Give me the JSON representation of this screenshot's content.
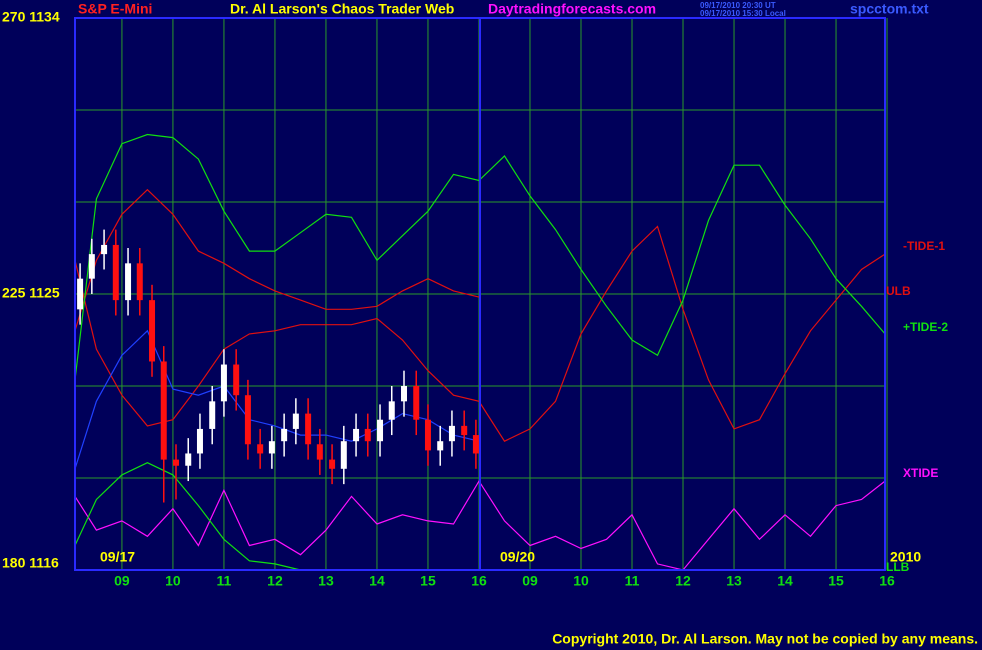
{
  "chart_data": {
    "type": "line",
    "symbol": "S&P E-Mini",
    "title": "Dr. Al Larson's Chaos Trader Web",
    "site": "Daytradingforecasts.com",
    "timestamps": [
      "09/17/2010 20:30 UT",
      "09/17/2010 15:30 Local"
    ],
    "file": "spcctom.txt",
    "copyright": "Copyright 2010, Dr. Al Larson. May not be copied by any means.",
    "annotations": [
      "09/17",
      "09/20",
      "2010"
    ],
    "xlim": [
      0.08,
      15.96
    ],
    "ylim": [
      1116,
      1134
    ],
    "xticks": [
      {
        "value": 1,
        "label": "09"
      },
      {
        "value": 2,
        "label": "10"
      },
      {
        "value": 3,
        "label": "11"
      },
      {
        "value": 4,
        "label": "12"
      },
      {
        "value": 5,
        "label": "13"
      },
      {
        "value": 6,
        "label": "14"
      },
      {
        "value": 7,
        "label": "15"
      },
      {
        "value": 8,
        "label": "16"
      },
      {
        "value": 9,
        "label": "09"
      },
      {
        "value": 10,
        "label": "10"
      },
      {
        "value": 11,
        "label": "11"
      },
      {
        "value": 12,
        "label": "12"
      },
      {
        "value": 13,
        "label": "13"
      },
      {
        "value": 14,
        "label": "14"
      },
      {
        "value": 15,
        "label": "15"
      },
      {
        "value": 16,
        "label": "16"
      }
    ],
    "yticks": [
      {
        "value": 1116,
        "label": "180 1116"
      },
      {
        "value": 1119,
        "label": null
      },
      {
        "value": 1122,
        "label": null
      },
      {
        "value": 1125,
        "label": "225 1125"
      },
      {
        "value": 1128,
        "label": null
      },
      {
        "value": 1131,
        "label": null
      },
      {
        "value": 1134,
        "label": "270 1134"
      }
    ],
    "grid": true,
    "x": [
      0.08,
      0.5,
      1,
      1.5,
      2,
      2.5,
      3,
      3.5,
      4,
      4.5,
      5,
      5.5,
      6,
      6.5,
      7,
      7.5,
      8,
      8.5,
      9,
      9.5,
      10,
      10.5,
      11,
      11.5,
      12,
      12.5,
      13,
      13.5,
      14,
      14.5,
      15,
      15.5,
      15.96
    ],
    "series": [
      {
        "name": "-TIDE-1",
        "color": "#e01010",
        "values": [
          1126.1,
          1123.2,
          1121.7,
          1120.7,
          1120.9,
          1122.0,
          1123.2,
          1123.7,
          1123.8,
          1124.0,
          1124.0,
          1124.0,
          1124.2,
          1123.5,
          1122.5,
          1121.7,
          1121.5,
          1120.2,
          1120.6,
          1121.5,
          1123.7,
          1125.1,
          1126.4,
          1127.2,
          1124.5,
          1122.2,
          1120.6,
          1120.9,
          1122.4,
          1123.8,
          1124.8,
          1125.8,
          1126.3
        ]
      },
      {
        "name": "ULB",
        "color": "#e01010",
        "values": [
          1123.8,
          1126.1,
          1127.6,
          1128.4,
          1127.6,
          1126.4,
          1126.0,
          1125.5,
          1125.1,
          1124.8,
          1124.5,
          1124.5,
          1124.6,
          1125.1,
          1125.5,
          1125.1,
          1124.9,
          null,
          null,
          null,
          null,
          null,
          null,
          null,
          null,
          null,
          null,
          null,
          null,
          null,
          null,
          null,
          null
        ]
      },
      {
        "name": "+TIDE-2",
        "color": "#10e010",
        "values": [
          1122.2,
          1128.1,
          1129.9,
          1130.2,
          1130.1,
          1129.4,
          1127.7,
          1126.4,
          1126.4,
          1127.0,
          1127.6,
          1127.5,
          1126.1,
          1126.9,
          1127.7,
          1128.9,
          1128.7,
          1129.5,
          1128.2,
          1127.1,
          1125.8,
          1124.6,
          1123.5,
          1123.0,
          1124.8,
          1127.4,
          1129.2,
          1129.2,
          1127.9,
          1126.8,
          1125.5,
          1124.6,
          1123.7
        ]
      },
      {
        "color": "#2040ff",
        "values": [
          1119.3,
          1121.5,
          1123.0,
          1123.8,
          1121.9,
          1121.7,
          1122.0,
          1120.9,
          1120.7,
          1120.4,
          1120.4,
          1120.2,
          1120.6,
          1121.1,
          1120.9,
          1120.4,
          1120.2,
          null,
          null,
          null,
          null,
          null,
          null,
          null,
          null,
          null,
          null,
          null,
          null,
          null,
          null,
          null,
          null
        ]
      },
      {
        "name": "XTIDE",
        "color": "#ff10ff",
        "values": [
          1118.4,
          1117.3,
          1117.6,
          1117.1,
          1118.0,
          1116.8,
          1118.6,
          1116.8,
          1117.0,
          1116.5,
          1117.3,
          1118.4,
          1117.5,
          1117.8,
          1117.6,
          1117.5,
          1118.9,
          1117.6,
          1116.8,
          1117.1,
          1116.7,
          1117.0,
          1117.8,
          1116.2,
          1116.0,
          1117.0,
          1118.0,
          1117.0,
          1117.8,
          1117.1,
          1118.1,
          1118.3,
          1118.9
        ]
      },
      {
        "name": "LLB",
        "color": "#10e010",
        "values": [
          1116.8,
          1118.3,
          1119.1,
          1119.5,
          1119.1,
          1118.1,
          1117.0,
          1116.3,
          1116.2,
          1116.0,
          null,
          null,
          null,
          null,
          null,
          null,
          null,
          null,
          null,
          null,
          null,
          null,
          null,
          null,
          null,
          null,
          null,
          null,
          null,
          null,
          null,
          null,
          null
        ]
      }
    ],
    "candles": {
      "up_color": "#ffffff",
      "down_color": "#ff1010",
      "x": [
        0.18,
        0.41,
        0.65,
        0.88,
        1.12,
        1.35,
        1.59,
        1.82,
        2.06,
        2.3,
        2.53,
        2.77,
        3.0,
        3.24,
        3.47,
        3.71,
        3.94,
        4.18,
        4.41,
        4.65,
        4.88,
        5.12,
        5.35,
        5.59,
        5.82,
        6.06,
        6.29,
        6.53,
        6.77,
        7.0,
        7.24,
        7.47,
        7.71,
        7.94
      ],
      "open": [
        1124.5,
        1125.5,
        1126.3,
        1126.6,
        1124.8,
        1126.0,
        1124.8,
        1122.8,
        1119.6,
        1119.4,
        1119.8,
        1120.6,
        1121.5,
        1122.7,
        1121.7,
        1120.1,
        1119.8,
        1120.2,
        1120.6,
        1121.1,
        1120.1,
        1119.6,
        1119.3,
        1120.2,
        1120.6,
        1120.2,
        1120.9,
        1121.5,
        1122.0,
        1120.9,
        1119.9,
        1120.2,
        1120.7,
        1120.4
      ],
      "high": [
        1126.0,
        1126.8,
        1127.1,
        1127.1,
        1126.5,
        1126.5,
        1125.3,
        1123.3,
        1120.1,
        1120.3,
        1121.1,
        1122.0,
        1123.2,
        1123.2,
        1122.2,
        1120.6,
        1120.7,
        1121.1,
        1121.6,
        1121.6,
        1120.6,
        1120.1,
        1120.7,
        1121.1,
        1121.1,
        1121.4,
        1122.0,
        1122.5,
        1122.5,
        1121.4,
        1120.7,
        1121.2,
        1121.2,
        1120.9
      ],
      "low": [
        1124.0,
        1125.0,
        1125.8,
        1124.3,
        1124.3,
        1124.3,
        1122.3,
        1118.2,
        1118.3,
        1118.9,
        1119.3,
        1120.1,
        1121.0,
        1121.2,
        1119.6,
        1119.3,
        1119.3,
        1119.7,
        1120.1,
        1119.6,
        1119.1,
        1118.8,
        1118.8,
        1119.7,
        1119.7,
        1119.7,
        1120.4,
        1121.0,
        1120.4,
        1119.4,
        1119.4,
        1119.7,
        1119.9,
        1119.3
      ],
      "close": [
        1125.5,
        1126.3,
        1126.6,
        1124.8,
        1126.0,
        1124.8,
        1122.8,
        1119.6,
        1119.4,
        1119.8,
        1120.6,
        1121.5,
        1122.7,
        1121.7,
        1120.1,
        1119.8,
        1120.2,
        1120.6,
        1121.1,
        1120.1,
        1119.6,
        1119.3,
        1120.2,
        1120.6,
        1120.2,
        1120.9,
        1121.5,
        1122.0,
        1120.9,
        1119.9,
        1120.2,
        1120.7,
        1120.4,
        1119.8
      ]
    }
  }
}
